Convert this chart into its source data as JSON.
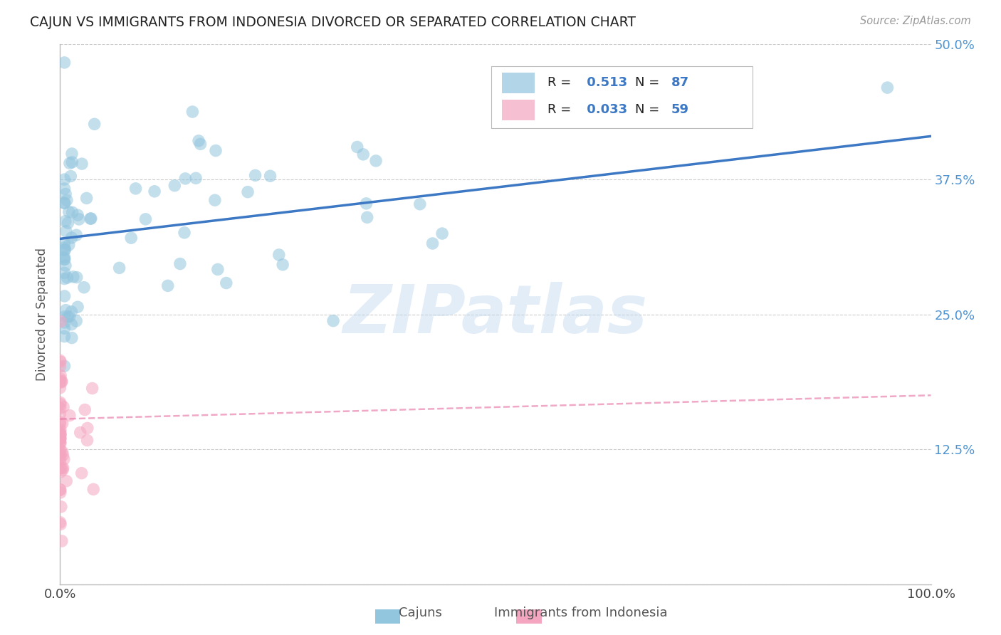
{
  "title": "CAJUN VS IMMIGRANTS FROM INDONESIA DIVORCED OR SEPARATED CORRELATION CHART",
  "source": "Source: ZipAtlas.com",
  "ylabel": "Divorced or Separated",
  "watermark": "ZIPatlas",
  "xlim": [
    0,
    1.0
  ],
  "ylim": [
    0,
    0.5
  ],
  "yticks": [
    0.0,
    0.125,
    0.25,
    0.375,
    0.5
  ],
  "ytick_labels": [
    "",
    "12.5%",
    "25.0%",
    "37.5%",
    "50.0%"
  ],
  "xtick_labels": [
    "0.0%",
    "",
    "",
    "",
    "",
    "",
    "",
    "",
    "",
    "",
    "100.0%"
  ],
  "legend_cajun_R": "0.513",
  "legend_cajun_N": "87",
  "legend_indo_R": "0.033",
  "legend_indo_N": "59",
  "blue_color": "#92c5de",
  "pink_color": "#f4a6c0",
  "blue_line_color": "#3c78c3",
  "pink_line_color": "#e87aaa",
  "grid_color": "#cccccc",
  "background_color": "#ffffff",
  "blue_line_start_y": 0.32,
  "blue_line_end_y": 0.415,
  "pink_line_start_y": 0.153,
  "pink_line_end_y": 0.175
}
